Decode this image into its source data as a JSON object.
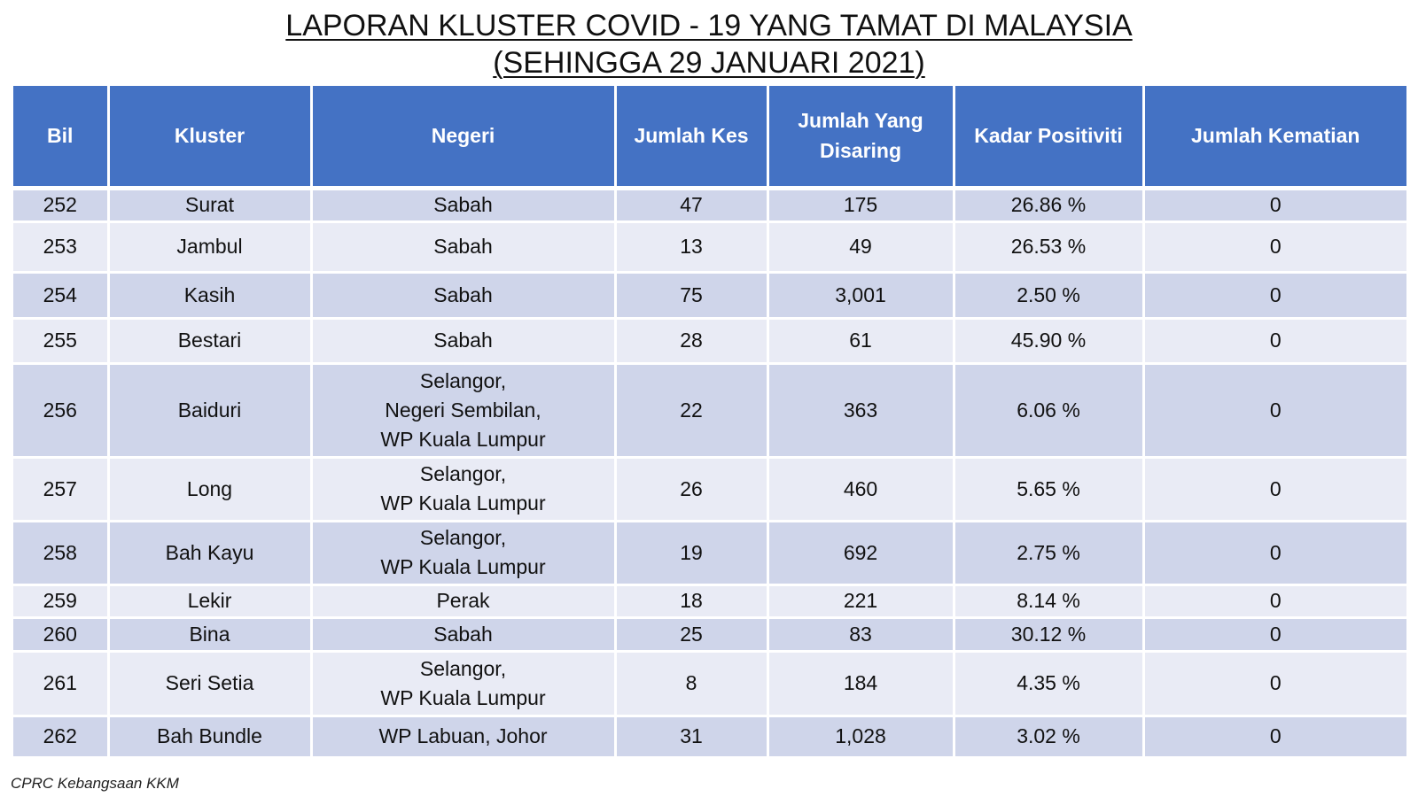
{
  "title": {
    "line1": "LAPORAN KLUSTER COVID - 19 YANG TAMAT DI MALAYSIA",
    "line2": "(SEHINGGA 29 JANUARI 2021)"
  },
  "table": {
    "headers": [
      "Bil",
      "Kluster",
      "Negeri",
      "Jumlah Kes",
      "Jumlah Yang Disaring",
      "Kadar Positiviti",
      "Jumlah Kematian"
    ],
    "rows": [
      {
        "bil": "252",
        "kluster": "Surat",
        "negeri": "Sabah",
        "kes": "47",
        "disaring": "175",
        "positiviti": "26.86 %",
        "kematian": "0"
      },
      {
        "bil": "253",
        "kluster": "Jambul",
        "negeri": "Sabah",
        "kes": "13",
        "disaring": "49",
        "positiviti": "26.53 %",
        "kematian": "0"
      },
      {
        "bil": "254",
        "kluster": "Kasih",
        "negeri": "Sabah",
        "kes": "75",
        "disaring": "3,001",
        "positiviti": "2.50 %",
        "kematian": "0"
      },
      {
        "bil": "255",
        "kluster": "Bestari",
        "negeri": "Sabah",
        "kes": "28",
        "disaring": "61",
        "positiviti": "45.90 %",
        "kematian": "0"
      },
      {
        "bil": "256",
        "kluster": "Baiduri",
        "negeri": "Selangor,\nNegeri Sembilan,\nWP Kuala Lumpur",
        "kes": "22",
        "disaring": "363",
        "positiviti": "6.06 %",
        "kematian": "0"
      },
      {
        "bil": "257",
        "kluster": "Long",
        "negeri": "Selangor,\nWP Kuala Lumpur",
        "kes": "26",
        "disaring": "460",
        "positiviti": "5.65 %",
        "kematian": "0"
      },
      {
        "bil": "258",
        "kluster": "Bah Kayu",
        "negeri": "Selangor,\nWP Kuala Lumpur",
        "kes": "19",
        "disaring": "692",
        "positiviti": "2.75 %",
        "kematian": "0"
      },
      {
        "bil": "259",
        "kluster": "Lekir",
        "negeri": "Perak",
        "kes": "18",
        "disaring": "221",
        "positiviti": "8.14 %",
        "kematian": "0"
      },
      {
        "bil": "260",
        "kluster": "Bina",
        "negeri": "Sabah",
        "kes": "25",
        "disaring": "83",
        "positiviti": "30.12 %",
        "kematian": "0"
      },
      {
        "bil": "261",
        "kluster": "Seri Setia",
        "negeri": "Selangor,\nWP Kuala Lumpur",
        "kes": "8",
        "disaring": "184",
        "positiviti": "4.35 %",
        "kematian": "0"
      },
      {
        "bil": "262",
        "kluster": "Bah Bundle",
        "negeri": "WP Labuan, Johor",
        "kes": "31",
        "disaring": "1,028",
        "positiviti": "3.02 %",
        "kematian": "0"
      }
    ]
  },
  "source": "CPRC Kebangsaan KKM",
  "colors": {
    "header_bg": "#4472c4",
    "row_dark": "#cfd5ea",
    "row_light": "#e9ebf5"
  }
}
